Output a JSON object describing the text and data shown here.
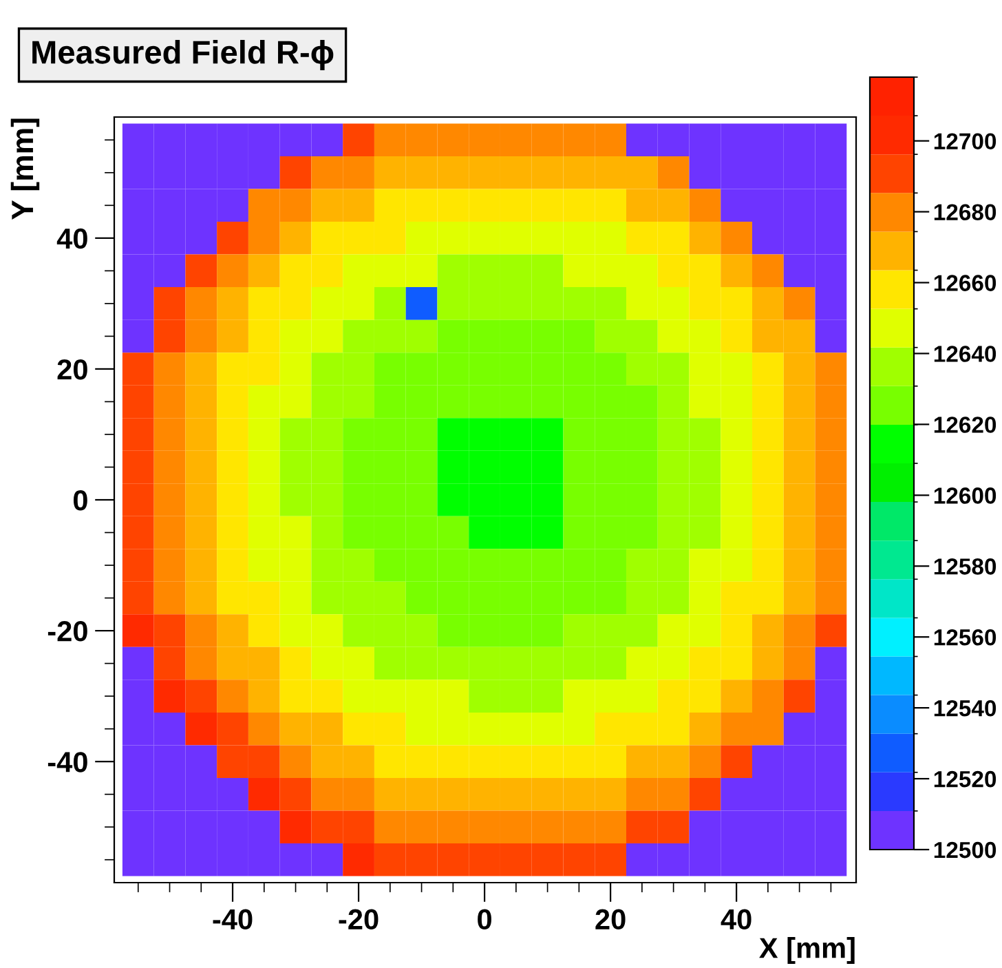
{
  "chart_data": {
    "type": "heatmap",
    "title": "Measured Field R-ϕ",
    "xlabel": "X [mm]",
    "ylabel": "Y [mm]",
    "x": [
      -55,
      -50,
      -45,
      -40,
      -35,
      -30,
      -25,
      -20,
      -15,
      -10,
      -5,
      0,
      5,
      10,
      15,
      20,
      25,
      30,
      35,
      40,
      45,
      50,
      55
    ],
    "y": [
      55,
      50,
      45,
      40,
      35,
      30,
      25,
      20,
      15,
      10,
      5,
      0,
      -5,
      -10,
      -15,
      -20,
      -25,
      -30,
      -35,
      -40,
      -45,
      -50,
      -55
    ],
    "xlim": [
      -58.8,
      59
    ],
    "ylim": [
      -58.5,
      58.5
    ],
    "xticks": [
      -40,
      -20,
      0,
      20,
      40
    ],
    "yticks": [
      -40,
      -20,
      0,
      20,
      40
    ],
    "clim": [
      12500,
      12718
    ],
    "cticks": [
      12500,
      12520,
      12540,
      12560,
      12580,
      12600,
      12620,
      12640,
      12660,
      12680,
      12700
    ],
    "grid": false,
    "cells": [
      [
        12500,
        12500,
        12500,
        12500,
        12500,
        12500,
        12500,
        12686,
        12682,
        12678,
        12676,
        12675,
        12675,
        12676,
        12678,
        12681,
        12500,
        12500,
        12500,
        12500,
        12500,
        12500,
        12500
      ],
      [
        12500,
        12500,
        12500,
        12500,
        12500,
        12687,
        12681,
        12675,
        12671,
        12668,
        12666,
        12664,
        12664,
        12665,
        12667,
        12670,
        12674,
        12680,
        12500,
        12500,
        12500,
        12500,
        12500
      ],
      [
        12500,
        12500,
        12500,
        12500,
        12685,
        12678,
        12671,
        12666,
        12662,
        12658,
        12656,
        12655,
        12655,
        12656,
        12658,
        12661,
        12665,
        12670,
        12676,
        12500,
        12500,
        12500,
        12500
      ],
      [
        12500,
        12500,
        12500,
        12686,
        12677,
        12669,
        12663,
        12658,
        12653,
        12650,
        12648,
        12646,
        12646,
        12647,
        12649,
        12652,
        12657,
        12662,
        12668,
        12675,
        12500,
        12500,
        12500
      ],
      [
        12500,
        12500,
        12688,
        12678,
        12670,
        12662,
        12656,
        12650,
        12646,
        12642,
        12640,
        12639,
        12639,
        12640,
        12642,
        12645,
        12649,
        12654,
        12661,
        12668,
        12676,
        12500,
        12500
      ],
      [
        12500,
        12692,
        12682,
        12672,
        12663,
        12656,
        12649,
        12644,
        12639,
        12530,
        12634,
        12633,
        12633,
        12634,
        12636,
        12639,
        12643,
        12648,
        12654,
        12662,
        12670,
        12680,
        12500
      ],
      [
        12500,
        12687,
        12676,
        12667,
        12658,
        12651,
        12644,
        12639,
        12634,
        12631,
        12629,
        12628,
        12627,
        12628,
        12630,
        12634,
        12638,
        12643,
        12649,
        12657,
        12665,
        12674,
        12500
      ],
      [
        12695,
        12683,
        12672,
        12663,
        12654,
        12646,
        12640,
        12634,
        12630,
        12627,
        12625,
        12623,
        12623,
        12624,
        12626,
        12629,
        12634,
        12639,
        12645,
        12652,
        12661,
        12670,
        12681
      ],
      [
        12692,
        12680,
        12669,
        12660,
        12651,
        12643,
        12637,
        12631,
        12627,
        12624,
        12622,
        12620,
        12620,
        12621,
        12623,
        12626,
        12630,
        12636,
        12642,
        12649,
        12658,
        12667,
        12678
      ],
      [
        12690,
        12678,
        12667,
        12657,
        12649,
        12641,
        12635,
        12629,
        12625,
        12622,
        12619,
        12618,
        12618,
        12619,
        12621,
        12624,
        12628,
        12634,
        12640,
        12647,
        12656,
        12665,
        12676
      ],
      [
        12689,
        12677,
        12666,
        12656,
        12648,
        12640,
        12634,
        12628,
        12624,
        12621,
        12618,
        12617,
        12617,
        12618,
        12620,
        12623,
        12627,
        12633,
        12639,
        12646,
        12655,
        12664,
        12675
      ],
      [
        12689,
        12677,
        12666,
        12657,
        12648,
        12640,
        12634,
        12628,
        12624,
        12621,
        12619,
        12617,
        12617,
        12618,
        12620,
        12623,
        12628,
        12633,
        12639,
        12646,
        12655,
        12664,
        12675
      ],
      [
        12690,
        12678,
        12668,
        12658,
        12649,
        12642,
        12635,
        12630,
        12625,
        12622,
        12620,
        12619,
        12618,
        12619,
        12622,
        12625,
        12629,
        12634,
        12640,
        12648,
        12656,
        12666,
        12676
      ],
      [
        12692,
        12680,
        12670,
        12660,
        12651,
        12644,
        12637,
        12632,
        12628,
        12624,
        12622,
        12621,
        12621,
        12622,
        12624,
        12627,
        12631,
        12636,
        12642,
        12650,
        12658,
        12668,
        12678
      ],
      [
        12696,
        12684,
        12673,
        12663,
        12655,
        12647,
        12641,
        12635,
        12631,
        12628,
        12625,
        12624,
        12624,
        12625,
        12627,
        12630,
        12634,
        12639,
        12646,
        12653,
        12662,
        12671,
        12682
      ],
      [
        12700,
        12688,
        12677,
        12668,
        12659,
        12652,
        12645,
        12640,
        12635,
        12632,
        12630,
        12628,
        12628,
        12629,
        12631,
        12634,
        12639,
        12644,
        12650,
        12658,
        12666,
        12675,
        12686
      ],
      [
        12500,
        12694,
        12683,
        12673,
        12664,
        12657,
        12650,
        12645,
        12641,
        12637,
        12635,
        12634,
        12634,
        12635,
        12637,
        12640,
        12644,
        12649,
        12656,
        12663,
        12671,
        12681,
        12500
      ],
      [
        12500,
        12700,
        12689,
        12680,
        12671,
        12663,
        12657,
        12652,
        12647,
        12644,
        12642,
        12640,
        12640,
        12641,
        12643,
        12646,
        12651,
        12656,
        12662,
        12669,
        12678,
        12687,
        12500
      ],
      [
        12500,
        12500,
        12697,
        12687,
        12679,
        12671,
        12664,
        12659,
        12655,
        12651,
        12649,
        12648,
        12648,
        12649,
        12651,
        12654,
        12658,
        12663,
        12670,
        12677,
        12685,
        12500,
        12500
      ],
      [
        12500,
        12500,
        12500,
        12696,
        12687,
        12680,
        12673,
        12668,
        12663,
        12660,
        12658,
        12657,
        12656,
        12657,
        12660,
        12663,
        12667,
        12672,
        12678,
        12686,
        12500,
        12500,
        12500
      ],
      [
        12500,
        12500,
        12500,
        12500,
        12697,
        12689,
        12683,
        12677,
        12673,
        12670,
        12667,
        12666,
        12666,
        12667,
        12669,
        12672,
        12676,
        12682,
        12688,
        12500,
        12500,
        12500,
        12500
      ],
      [
        12500,
        12500,
        12500,
        12500,
        12500,
        12700,
        12694,
        12688,
        12684,
        12680,
        12678,
        12677,
        12677,
        12678,
        12680,
        12683,
        12687,
        12692,
        12500,
        12500,
        12500,
        12500,
        12500
      ],
      [
        12500,
        12500,
        12500,
        12500,
        12500,
        12500,
        12500,
        12700,
        12696,
        12692,
        12690,
        12689,
        12689,
        12690,
        12692,
        12695,
        12500,
        12500,
        12500,
        12500,
        12500,
        12500,
        12500
      ]
    ]
  }
}
